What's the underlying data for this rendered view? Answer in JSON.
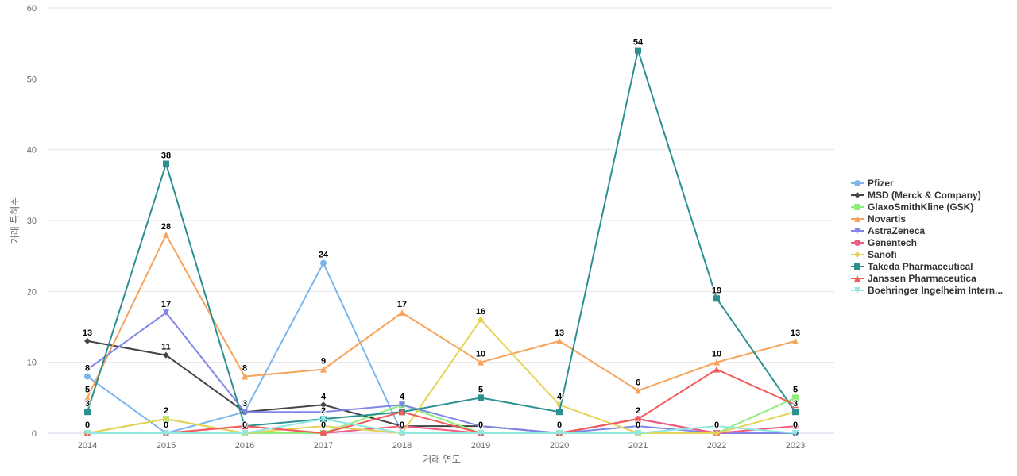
{
  "chart_data": {
    "type": "line",
    "xlabel": "거래 연도",
    "ylabel": "거래 특허수",
    "x": [
      "2014",
      "2015",
      "2016",
      "2017",
      "2018",
      "2019",
      "2020",
      "2021",
      "2022",
      "2023"
    ],
    "ylim": [
      0,
      60
    ],
    "yticks": [
      0,
      10,
      20,
      30,
      40,
      50,
      60
    ],
    "grid": true,
    "legend_position": "right",
    "series": [
      {
        "name": "Pfizer",
        "color": "#7cb5ec",
        "marker": "circle",
        "values": [
          8,
          0,
          3,
          24,
          0,
          0,
          0,
          0,
          0,
          0
        ]
      },
      {
        "name": "MSD (Merck & Company)",
        "color": "#434348",
        "marker": "diamond",
        "values": [
          13,
          11,
          3,
          4,
          1,
          1,
          0,
          2,
          0,
          0
        ]
      },
      {
        "name": "GlaxoSmithKline (GSK)",
        "color": "#90ed7d",
        "marker": "square",
        "values": [
          0,
          2,
          0,
          0,
          4,
          0,
          0,
          0,
          0,
          5
        ]
      },
      {
        "name": "Novartis",
        "color": "#f7a35c",
        "marker": "triangle",
        "values": [
          5,
          28,
          8,
          9,
          17,
          10,
          13,
          6,
          10,
          13
        ]
      },
      {
        "name": "AstraZeneca",
        "color": "#8085e9",
        "marker": "triangle-down",
        "values": [
          9,
          17,
          3,
          3,
          4,
          1,
          0,
          1,
          0,
          0
        ]
      },
      {
        "name": "Genentech",
        "color": "#f15c80",
        "marker": "circle",
        "values": [
          0,
          0,
          1,
          0,
          1,
          0,
          0,
          2,
          0,
          1
        ]
      },
      {
        "name": "Sanofi",
        "color": "#e4d354",
        "marker": "diamond",
        "values": [
          0,
          2,
          0,
          1,
          0,
          16,
          4,
          0,
          0,
          3
        ]
      },
      {
        "name": "Takeda Pharmaceutical",
        "color": "#2b908f",
        "marker": "square",
        "values": [
          3,
          38,
          1,
          2,
          3,
          5,
          3,
          54,
          19,
          3
        ]
      },
      {
        "name": "Janssen Pharmaceutica",
        "color": "#f45b5b",
        "marker": "triangle",
        "values": [
          0,
          0,
          1,
          0,
          3,
          0,
          0,
          2,
          9,
          4
        ]
      },
      {
        "name": "Boehringer Ingelheim Intern...",
        "color": "#91e8e1",
        "marker": "triangle-down",
        "values": [
          0,
          0,
          0,
          2,
          0,
          0,
          0,
          0,
          1,
          0
        ]
      }
    ]
  }
}
